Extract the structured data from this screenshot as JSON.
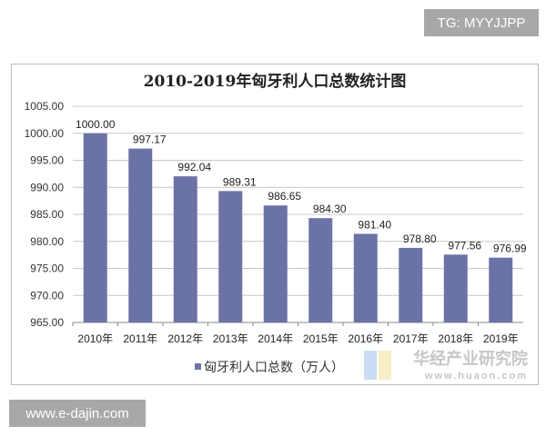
{
  "watermarks": {
    "top_right": "TG: MYYJJPP",
    "bottom_left": "www.e-dajin.com",
    "logo_cn": "华经产业研究院",
    "logo_url": "www.huaon.com"
  },
  "chart_data": {
    "type": "bar",
    "title": "2010-2019年匈牙利人口总数统计图",
    "categories": [
      "2010年",
      "2011年",
      "2012年",
      "2013年",
      "2014年",
      "2015年",
      "2016年",
      "2017年",
      "2018年",
      "2019年"
    ],
    "series": [
      {
        "name": "匈牙利人口总数（万人）",
        "values": [
          1000.0,
          997.17,
          992.04,
          989.31,
          986.65,
          984.3,
          981.4,
          978.8,
          977.56,
          976.99
        ],
        "color": "#6b73a6"
      }
    ],
    "data_labels": [
      "1000.00",
      "997.17",
      "992.04",
      "989.31",
      "986.65",
      "984.30",
      "981.40",
      "978.80",
      "977.56",
      "976.99"
    ],
    "yticks": [
      "965.00",
      "970.00",
      "975.00",
      "980.00",
      "985.00",
      "990.00",
      "995.00",
      "1000.00",
      "1005.00"
    ],
    "ylim": [
      965,
      1005
    ],
    "grid": true,
    "legend": "bottom"
  }
}
